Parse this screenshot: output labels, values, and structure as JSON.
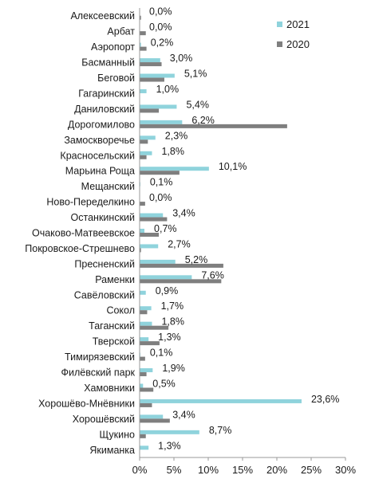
{
  "chart_data": {
    "type": "bar",
    "orientation": "horizontal",
    "categories": [
      "Алексеевский",
      "Арбат",
      "Аэропорт",
      "Басманный",
      "Беговой",
      "Гагаринский",
      "Даниловский",
      "Дорогомилово",
      "Замоскворечье",
      "Красносельский",
      "Марьина Роща",
      "Мещанский",
      "Ново-Переделкино",
      "Останкинский",
      "Очаково-Матвеевское",
      "Покровское-Стрешнево",
      "Пресненский",
      "Раменки",
      "Савёловский",
      "Сокол",
      "Таганский",
      "Тверской",
      "Тимирязевский",
      "Филёвский парк",
      "Хамовники",
      "Хорошёво-Мнёвники",
      "Хорошёвский",
      "Щукино",
      "Якиманка"
    ],
    "series": [
      {
        "name": "2021",
        "color": "#8fd3dc",
        "values": [
          0.0,
          0.0,
          0.2,
          3.0,
          5.1,
          1.0,
          5.4,
          6.2,
          2.3,
          1.8,
          10.1,
          0.1,
          0.0,
          3.4,
          0.7,
          2.7,
          5.2,
          7.6,
          0.9,
          1.7,
          1.8,
          1.3,
          0.1,
          1.9,
          0.5,
          23.6,
          3.4,
          8.7,
          1.3
        ],
        "labels": [
          "0,0%",
          "0,0%",
          "0,2%",
          "3,0%",
          "5,1%",
          "1,0%",
          "5,4%",
          "6,2%",
          "2,3%",
          "1,8%",
          "10,1%",
          "0,1%",
          "0,0%",
          "3,4%",
          "0,7%",
          "2,7%",
          "5,2%",
          "7,6%",
          "0,9%",
          "1,7%",
          "1,8%",
          "1,3%",
          "0,1%",
          "1,9%",
          "0,5%",
          "23,6%",
          "3,4%",
          "8,7%",
          "1,3%"
        ]
      },
      {
        "name": "2020",
        "color": "#7f7f7f",
        "values": [
          0.2,
          0.9,
          1.0,
          3.2,
          3.6,
          0.0,
          2.8,
          21.5,
          1.2,
          1.0,
          5.8,
          0.0,
          0.8,
          4.0,
          2.8,
          0.2,
          12.2,
          11.9,
          0.0,
          1.1,
          4.2,
          2.9,
          0.8,
          1.0,
          2.0,
          1.8,
          4.4,
          0.9,
          0.0
        ]
      }
    ],
    "xlim": [
      0,
      30
    ],
    "x_ticks": [
      "0%",
      "5%",
      "10%",
      "15%",
      "20%",
      "25%",
      "30%"
    ],
    "legend_position": "top-right",
    "grid": false
  }
}
